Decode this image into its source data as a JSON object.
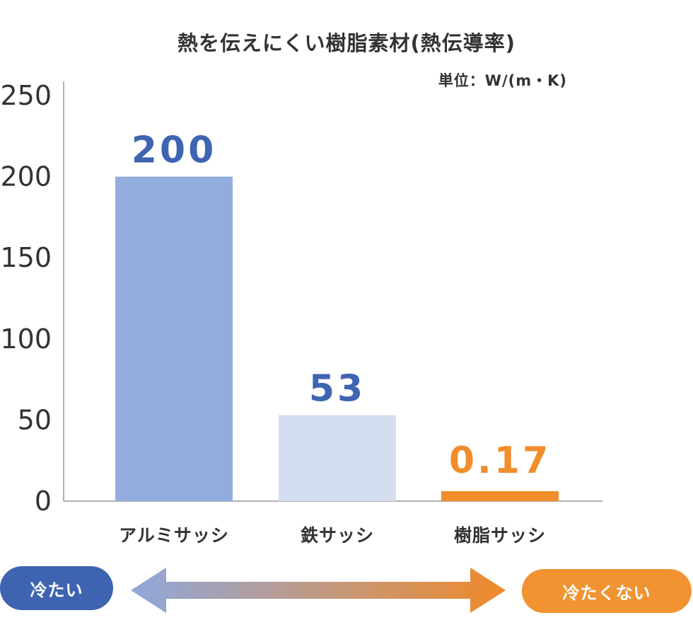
{
  "title": "熱を伝えにくい樹脂素材(熱伝導率)",
  "unit": "単位：W/(m・K)",
  "chart_data": {
    "type": "bar",
    "title": "熱を伝えにくい樹脂素材(熱伝導率)",
    "unit": "単位：W/(m・K)",
    "categories": [
      "アルミサッシ",
      "鉄サッシ",
      "樹脂サッシ"
    ],
    "values": [
      200,
      53,
      0.17
    ],
    "value_labels": [
      "200",
      "53",
      "0.17"
    ],
    "ylim": [
      0,
      250
    ],
    "yticks": [
      "0",
      "50",
      "100",
      "150",
      "200",
      "250"
    ],
    "grid": false,
    "legend": "none",
    "bar_colors": [
      "#92acdd",
      "#d4def0",
      "#f18d2b"
    ],
    "value_label_colors": [
      "#3f64b2",
      "#3f64b2",
      "#f18d2b"
    ]
  },
  "scale": {
    "left_label": "冷たい",
    "right_label": "冷たくない",
    "left_color": "#3e63b1",
    "right_color": "#f29331",
    "arrow_gradient": [
      "#8fa8dc",
      "#f08a2a"
    ]
  }
}
